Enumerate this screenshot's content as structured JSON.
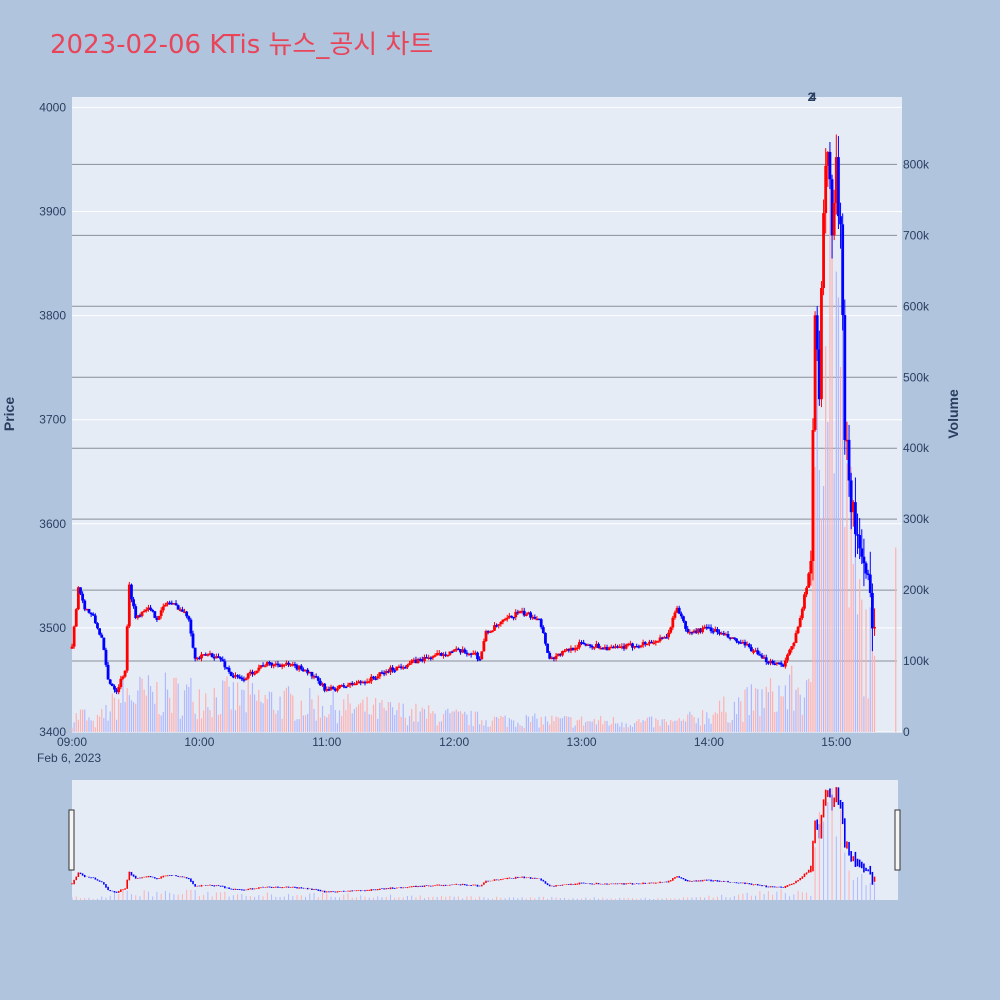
{
  "title": "2023-02-06 KTis 뉴스_공시 차트",
  "colors": {
    "background": "#b0c4de",
    "plot_bg": "#e5ecf6",
    "title": "#e8455a",
    "up": "#ff0000",
    "down": "#0000ff",
    "volume_up": "#ffb0b0",
    "volume_down": "#b0b8ff"
  },
  "chart_data": {
    "type": "candlestick",
    "x_axis": {
      "ticks": [
        "09:00",
        "10:00",
        "11:00",
        "12:00",
        "13:00",
        "14:00",
        "15:00"
      ],
      "date_label": "Feb 6, 2023",
      "range": [
        "09:00",
        "15:30"
      ]
    },
    "y_axis": {
      "label": "Price",
      "ticks": [
        3400,
        3500,
        3600,
        3700,
        3800,
        3900,
        4000
      ],
      "range": [
        3400,
        4010
      ]
    },
    "y2_axis": {
      "label": "Volume",
      "ticks": [
        0,
        100000,
        200000,
        300000,
        400000,
        500000,
        600000,
        700000,
        800000
      ],
      "tick_labels": [
        "0",
        "100k",
        "200k",
        "300k",
        "400k",
        "500k",
        "600k",
        "700k",
        "800k"
      ],
      "range": [
        0,
        895000
      ]
    },
    "annotations": [
      "2",
      "4"
    ],
    "range_slider": true,
    "price_path": [
      [
        "09:00",
        3480
      ],
      [
        "09:03",
        3540
      ],
      [
        "09:06",
        3520
      ],
      [
        "09:10",
        3510
      ],
      [
        "09:14",
        3490
      ],
      [
        "09:17",
        3450
      ],
      [
        "09:21",
        3440
      ],
      [
        "09:25",
        3460
      ],
      [
        "09:27",
        3540
      ],
      [
        "09:30",
        3510
      ],
      [
        "09:35",
        3520
      ],
      [
        "09:40",
        3510
      ],
      [
        "09:45",
        3525
      ],
      [
        "09:50",
        3520
      ],
      [
        "09:55",
        3510
      ],
      [
        "09:58",
        3470
      ],
      [
        "10:05",
        3475
      ],
      [
        "10:10",
        3470
      ],
      [
        "10:15",
        3455
      ],
      [
        "10:20",
        3450
      ],
      [
        "10:30",
        3465
      ],
      [
        "10:40",
        3465
      ],
      [
        "10:50",
        3460
      ],
      [
        "11:00",
        3440
      ],
      [
        "11:10",
        3445
      ],
      [
        "11:20",
        3450
      ],
      [
        "11:30",
        3460
      ],
      [
        "11:45",
        3470
      ],
      [
        "12:00",
        3478
      ],
      [
        "12:10",
        3475
      ],
      [
        "12:12",
        3470
      ],
      [
        "12:15",
        3495
      ],
      [
        "12:30",
        3515
      ],
      [
        "12:40",
        3510
      ],
      [
        "12:45",
        3470
      ],
      [
        "13:00",
        3485
      ],
      [
        "13:15",
        3480
      ],
      [
        "13:30",
        3485
      ],
      [
        "13:40",
        3490
      ],
      [
        "13:45",
        3520
      ],
      [
        "13:50",
        3495
      ],
      [
        "14:00",
        3500
      ],
      [
        "14:10",
        3490
      ],
      [
        "14:20",
        3480
      ],
      [
        "14:25",
        3470
      ],
      [
        "14:35",
        3465
      ],
      [
        "14:40",
        3485
      ],
      [
        "14:45",
        3530
      ],
      [
        "14:48",
        3560
      ],
      [
        "14:50",
        3820
      ],
      [
        "14:52",
        3730
      ],
      [
        "14:54",
        3900
      ],
      [
        "14:56",
        3960
      ],
      [
        "14:58",
        3880
      ],
      [
        "15:00",
        3940
      ],
      [
        "15:02",
        3870
      ],
      [
        "15:04",
        3700
      ],
      [
        "15:06",
        3650
      ],
      [
        "15:08",
        3610
      ],
      [
        "15:10",
        3590
      ],
      [
        "15:12",
        3560
      ],
      [
        "15:15",
        3535
      ],
      [
        "15:18",
        3510
      ]
    ],
    "volume_profile": [
      [
        "09:00",
        20000
      ],
      [
        "09:05",
        30000
      ],
      [
        "09:10",
        12000
      ],
      [
        "09:25",
        60000
      ],
      [
        "10:00",
        60000
      ],
      [
        "12:15",
        20000
      ],
      [
        "13:45",
        15000
      ],
      [
        "14:42",
        70000
      ],
      [
        "14:48",
        55000
      ],
      [
        "14:50",
        620000
      ],
      [
        "14:52",
        850000
      ],
      [
        "14:55",
        780000
      ],
      [
        "15:00",
        720000
      ],
      [
        "15:05",
        340000
      ],
      [
        "15:10",
        200000
      ],
      [
        "15:15",
        140000
      ],
      [
        "15:20",
        105000
      ],
      [
        "15:28",
        260000
      ]
    ]
  }
}
